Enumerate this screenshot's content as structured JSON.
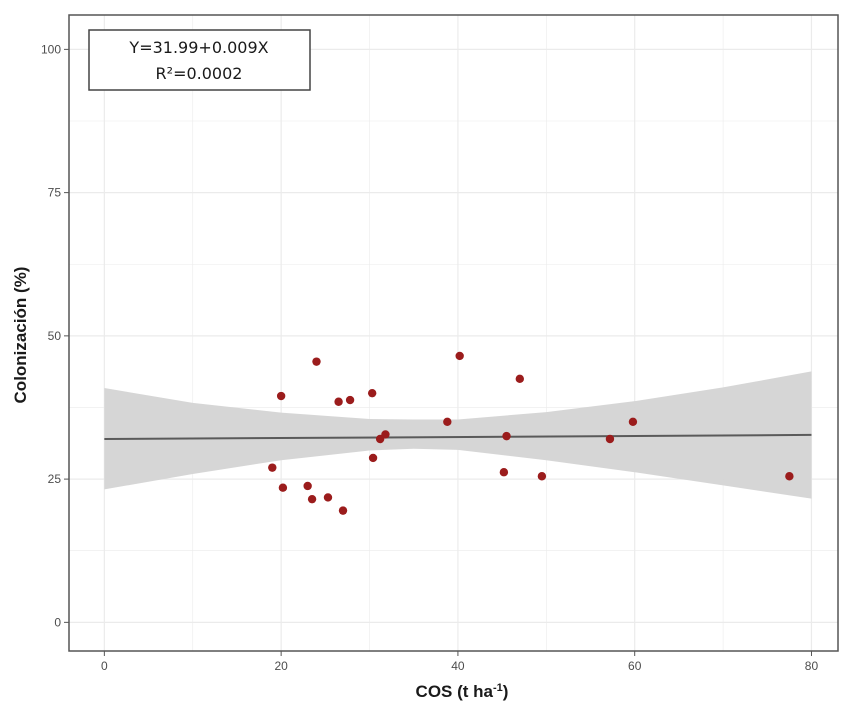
{
  "chart_data": {
    "type": "scatter",
    "xlabel": "COS (t ha",
    "xlabel_sup": "-1",
    "xlabel_end": ")",
    "ylabel": "Colonización (%)",
    "xlim": [
      -4,
      83
    ],
    "ylim": [
      -5,
      106
    ],
    "xticks": [
      0,
      20,
      40,
      60,
      80
    ],
    "yticks": [
      0,
      25,
      50,
      75,
      100
    ],
    "grid": true,
    "equation_line1": "Y=31.99+0.009X",
    "equation_line2": "R²=0.0002",
    "regression": {
      "intercept": 31.99,
      "slope": 0.009,
      "x_range": [
        0,
        80
      ]
    },
    "confidence_band": {
      "x": [
        0,
        10,
        20,
        30,
        35,
        40,
        50,
        60,
        70,
        80
      ],
      "lower": [
        23.2,
        25.9,
        28.3,
        30.0,
        30.3,
        30.1,
        28.3,
        26.2,
        23.9,
        21.6
      ],
      "upper": [
        40.9,
        38.3,
        36.6,
        35.5,
        35.4,
        35.4,
        36.7,
        38.6,
        41.0,
        43.8
      ]
    },
    "points": [
      {
        "x": 19,
        "y": 27
      },
      {
        "x": 20,
        "y": 39.5
      },
      {
        "x": 20.2,
        "y": 23.5
      },
      {
        "x": 23,
        "y": 23.8
      },
      {
        "x": 23.5,
        "y": 21.5
      },
      {
        "x": 24,
        "y": 45.5
      },
      {
        "x": 25.3,
        "y": 21.8
      },
      {
        "x": 26.5,
        "y": 38.5
      },
      {
        "x": 27,
        "y": 19.5
      },
      {
        "x": 27.8,
        "y": 38.8
      },
      {
        "x": 30.3,
        "y": 40
      },
      {
        "x": 30.4,
        "y": 28.7
      },
      {
        "x": 31.2,
        "y": 32
      },
      {
        "x": 31.8,
        "y": 32.8
      },
      {
        "x": 38.8,
        "y": 35
      },
      {
        "x": 40.2,
        "y": 46.5
      },
      {
        "x": 45.2,
        "y": 26.2
      },
      {
        "x": 45.5,
        "y": 32.5
      },
      {
        "x": 47,
        "y": 42.5
      },
      {
        "x": 49.5,
        "y": 25.5
      },
      {
        "x": 57.2,
        "y": 32
      },
      {
        "x": 59.8,
        "y": 35
      },
      {
        "x": 77.5,
        "y": 25.5
      }
    ],
    "colors": {
      "point": "#9b1c1c",
      "line": "#5a5a5a",
      "band": "#d4d4d4",
      "grid": "#ebebeb",
      "frame": "#555555"
    }
  }
}
